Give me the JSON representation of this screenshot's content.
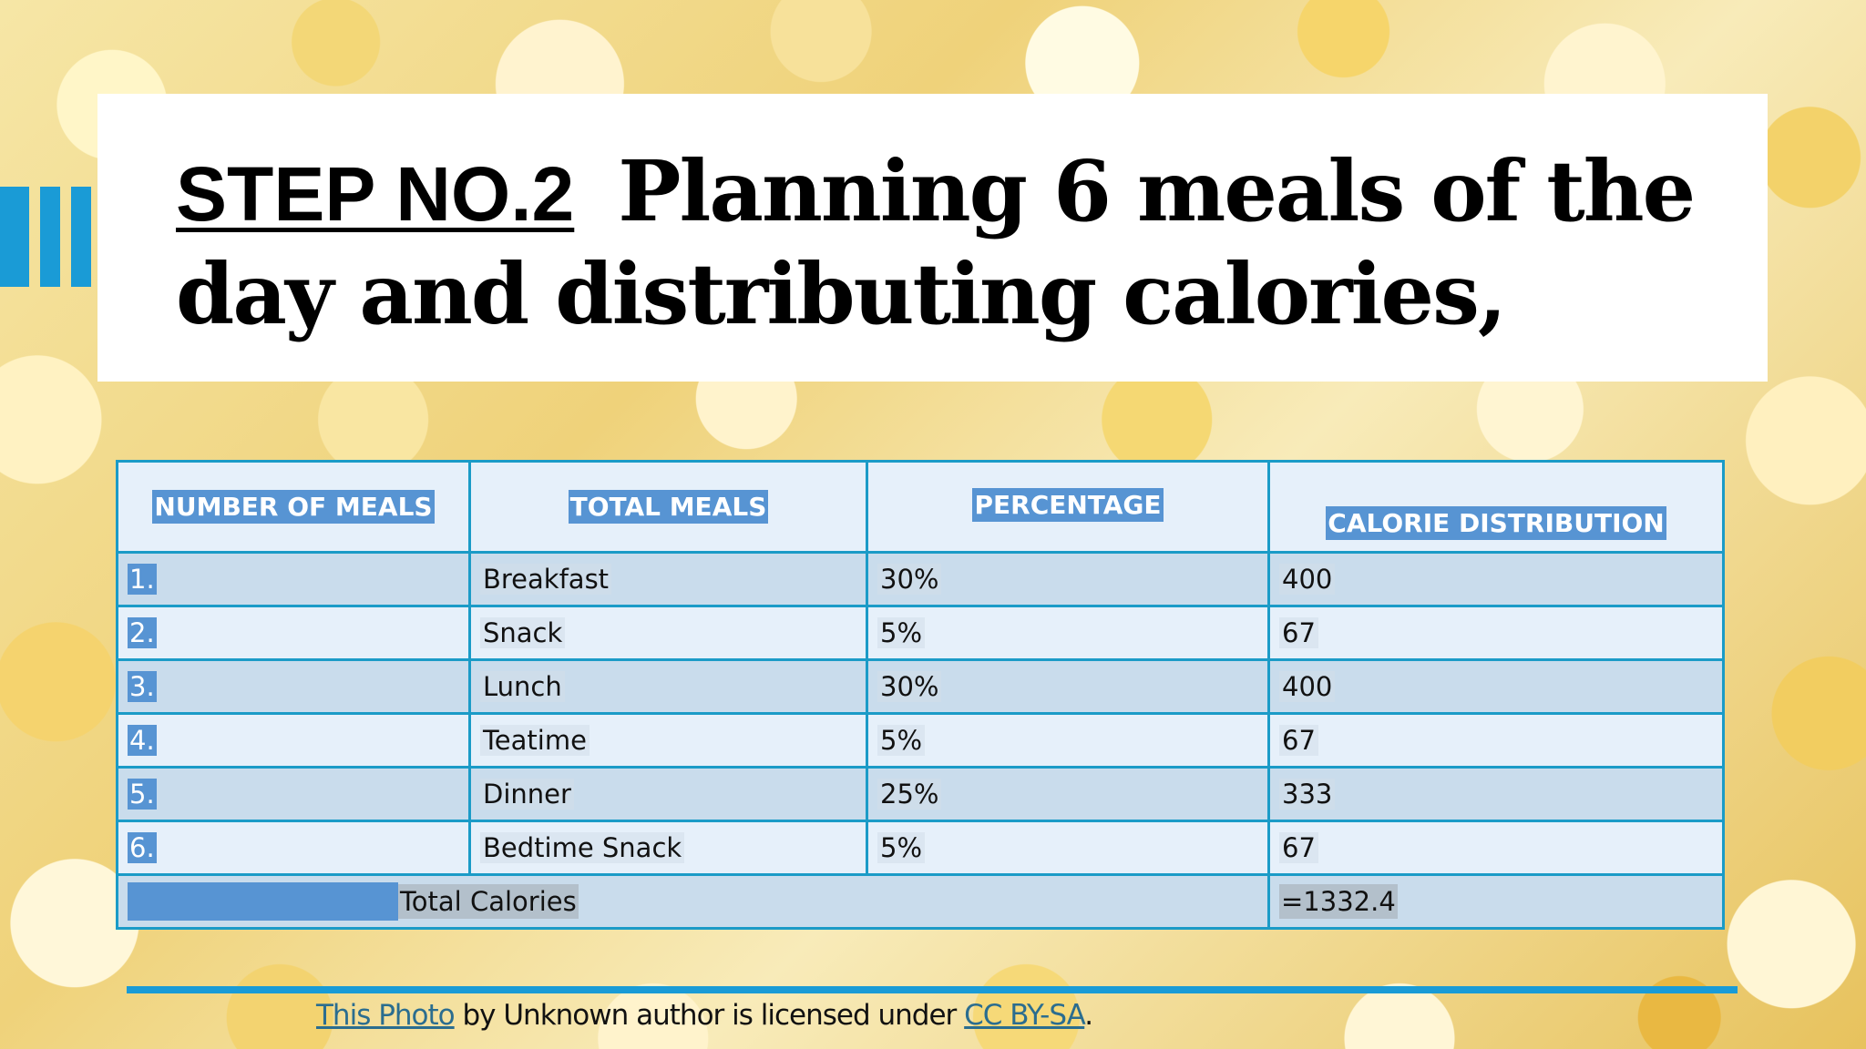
{
  "slide": {
    "title_step": "STEP NO.2",
    "title_line1": "Planning 6 meals of the",
    "title_line2": "day and distributing calories,"
  },
  "table": {
    "headers": [
      "NUMBER OF MEALS",
      "TOTAL MEALS",
      "PERCENTAGE",
      "CALORIE DISTRIBUTION"
    ],
    "rows": [
      {
        "number": "1.",
        "meal": "Breakfast",
        "percentage": "30%",
        "calories": "400"
      },
      {
        "number": "2.",
        "meal": "Snack",
        "percentage": "5%",
        "calories": "67"
      },
      {
        "number": "3.",
        "meal": "Lunch",
        "percentage": "30%",
        "calories": "400"
      },
      {
        "number": "4.",
        "meal": "Teatime",
        "percentage": "5%",
        "calories": "67"
      },
      {
        "number": "5.",
        "meal": "Dinner",
        "percentage": "25%",
        "calories": "333"
      },
      {
        "number": "6.",
        "meal": "Bedtime Snack",
        "percentage": "5%",
        "calories": "67"
      }
    ],
    "total_label": "Total Calories",
    "total_value": "=1332.4"
  },
  "credit": {
    "photo_link": "This Photo",
    "by_text": " by Unknown author is licensed under ",
    "license_link": "CC BY-SA",
    "end": "."
  },
  "colors": {
    "accent": "#1a9bd6",
    "header_fill": "#5794d3",
    "table_border": "#1b9bc7"
  }
}
